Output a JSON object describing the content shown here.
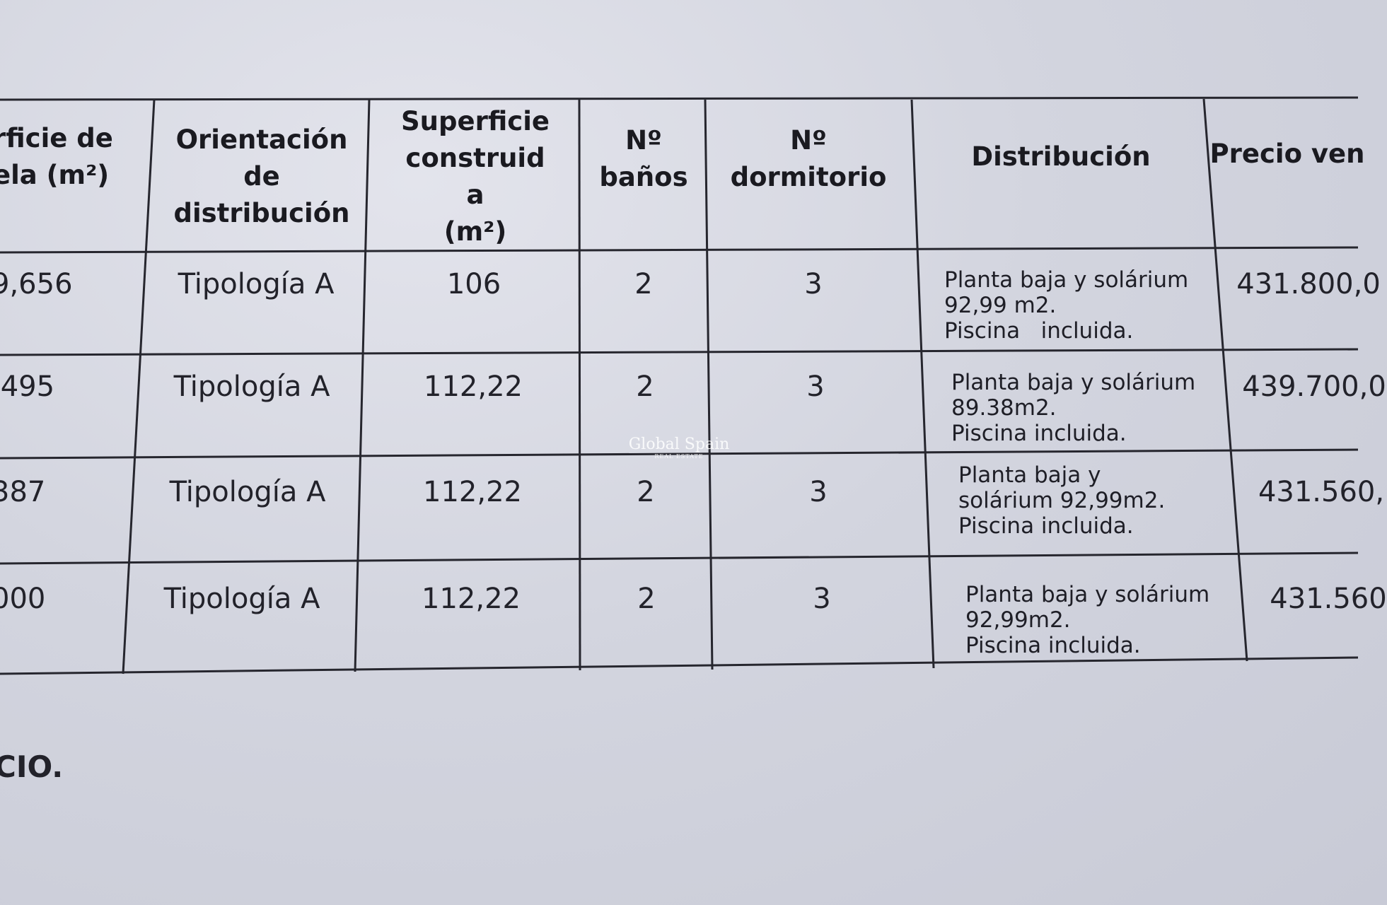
{
  "table": {
    "headers": [
      "rficie de\nela (m²)",
      "Orientación\nde\ndistribución",
      "Superficie\nconstruid\na\n(m²)",
      "Nº\nbaños",
      "Nº\ndormitorio",
      "Distribución",
      "Precio ven"
    ],
    "rows": [
      {
        "parcela": "9,656",
        "orientacion": "Tipología A",
        "superficie": "106",
        "banos": "2",
        "dormitorios": "3",
        "distribucion": "Planta baja y solárium\n92,99 m2.\nPiscina   incluida.",
        "precio": "431.800,0"
      },
      {
        "parcela": ",495",
        "orientacion": "Tipología A",
        "superficie": "112,22",
        "banos": "2",
        "dormitorios": "3",
        "distribucion": "Planta baja y solárium\n89.38m2.\nPiscina incluida.",
        "precio": "439.700,0"
      },
      {
        "parcela": "387",
        "orientacion": "Tipología A",
        "superficie": "112,22",
        "banos": "2",
        "dormitorios": "3",
        "distribucion": "Planta baja y\nsolárium 92,99m2.\nPiscina incluida.",
        "precio": "431.560,"
      },
      {
        "parcela": "000",
        "orientacion": "Tipología A",
        "superficie": "112,22",
        "banos": "2",
        "dormitorios": "3",
        "distribucion": "Planta baja y solárium\n92,99m2.\nPiscina incluida.",
        "precio": "431.560"
      }
    ]
  },
  "footer_text": "CIO.",
  "watermark": {
    "name": "Global Spain",
    "sub": "REAL ESTATE"
  }
}
